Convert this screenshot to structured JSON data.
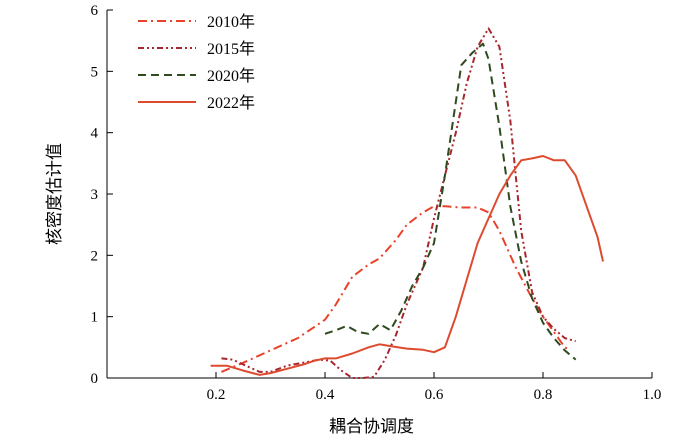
{
  "chart_data": {
    "type": "line",
    "title": "",
    "xlabel": "耦合协调度",
    "ylabel": "核密度估计值",
    "xlim": [
      0,
      1.0
    ],
    "ylim": [
      0,
      6
    ],
    "xticks": [
      0.2,
      0.4,
      0.6,
      0.8,
      1.0
    ],
    "xtick_labels": [
      "0.2",
      "0.4",
      "0.6",
      "0.8",
      "1.0"
    ],
    "yticks": [
      0,
      1,
      2,
      3,
      4,
      5,
      6
    ],
    "ytick_labels": [
      "0",
      "1",
      "2",
      "3",
      "4",
      "5",
      "6"
    ],
    "grid": false,
    "legend_position": "top-left",
    "series": [
      {
        "name": "2010年",
        "style": "dashdot",
        "color": "#e8422a",
        "points": [
          [
            0.21,
            0.1
          ],
          [
            0.25,
            0.25
          ],
          [
            0.3,
            0.45
          ],
          [
            0.35,
            0.65
          ],
          [
            0.4,
            0.95
          ],
          [
            0.42,
            1.2
          ],
          [
            0.45,
            1.65
          ],
          [
            0.48,
            1.85
          ],
          [
            0.5,
            1.95
          ],
          [
            0.53,
            2.25
          ],
          [
            0.55,
            2.5
          ],
          [
            0.58,
            2.7
          ],
          [
            0.6,
            2.8
          ],
          [
            0.62,
            2.8
          ],
          [
            0.65,
            2.78
          ],
          [
            0.68,
            2.78
          ],
          [
            0.7,
            2.7
          ],
          [
            0.72,
            2.4
          ],
          [
            0.75,
            1.8
          ],
          [
            0.78,
            1.3
          ],
          [
            0.8,
            1.0
          ],
          [
            0.82,
            0.75
          ],
          [
            0.84,
            0.5
          ],
          [
            0.85,
            0.45
          ]
        ]
      },
      {
        "name": "2015年",
        "style": "dashdotdot",
        "color": "#a8262e",
        "points": [
          [
            0.21,
            0.32
          ],
          [
            0.23,
            0.3
          ],
          [
            0.25,
            0.22
          ],
          [
            0.28,
            0.1
          ],
          [
            0.3,
            0.1
          ],
          [
            0.33,
            0.2
          ],
          [
            0.36,
            0.25
          ],
          [
            0.39,
            0.3
          ],
          [
            0.41,
            0.28
          ],
          [
            0.43,
            0.12
          ],
          [
            0.45,
            0.0
          ],
          [
            0.47,
            0.0
          ],
          [
            0.49,
            0.02
          ],
          [
            0.51,
            0.3
          ],
          [
            0.53,
            0.7
          ],
          [
            0.55,
            1.2
          ],
          [
            0.58,
            1.8
          ],
          [
            0.6,
            2.6
          ],
          [
            0.62,
            3.3
          ],
          [
            0.64,
            4.0
          ],
          [
            0.66,
            4.8
          ],
          [
            0.68,
            5.4
          ],
          [
            0.7,
            5.7
          ],
          [
            0.72,
            5.4
          ],
          [
            0.74,
            4.2
          ],
          [
            0.76,
            2.4
          ],
          [
            0.78,
            1.4
          ],
          [
            0.8,
            1.0
          ],
          [
            0.82,
            0.8
          ],
          [
            0.84,
            0.65
          ],
          [
            0.86,
            0.6
          ]
        ]
      },
      {
        "name": "2020年",
        "style": "dashed",
        "color": "#2e4a1e",
        "points": [
          [
            0.4,
            0.72
          ],
          [
            0.42,
            0.78
          ],
          [
            0.44,
            0.85
          ],
          [
            0.46,
            0.75
          ],
          [
            0.48,
            0.72
          ],
          [
            0.5,
            0.88
          ],
          [
            0.52,
            0.78
          ],
          [
            0.54,
            1.1
          ],
          [
            0.56,
            1.5
          ],
          [
            0.58,
            1.8
          ],
          [
            0.6,
            2.2
          ],
          [
            0.62,
            3.3
          ],
          [
            0.64,
            4.5
          ],
          [
            0.65,
            5.1
          ],
          [
            0.67,
            5.3
          ],
          [
            0.69,
            5.45
          ],
          [
            0.7,
            5.2
          ],
          [
            0.72,
            4.1
          ],
          [
            0.74,
            2.8
          ],
          [
            0.76,
            1.9
          ],
          [
            0.78,
            1.3
          ],
          [
            0.8,
            0.9
          ],
          [
            0.82,
            0.65
          ],
          [
            0.84,
            0.45
          ],
          [
            0.86,
            0.3
          ]
        ]
      },
      {
        "name": "2022年",
        "style": "solid",
        "color": "#dd4b2f",
        "points": [
          [
            0.19,
            0.2
          ],
          [
            0.22,
            0.2
          ],
          [
            0.25,
            0.12
          ],
          [
            0.28,
            0.05
          ],
          [
            0.3,
            0.08
          ],
          [
            0.33,
            0.15
          ],
          [
            0.36,
            0.22
          ],
          [
            0.38,
            0.28
          ],
          [
            0.4,
            0.32
          ],
          [
            0.42,
            0.32
          ],
          [
            0.45,
            0.4
          ],
          [
            0.48,
            0.5
          ],
          [
            0.5,
            0.55
          ],
          [
            0.52,
            0.52
          ],
          [
            0.55,
            0.48
          ],
          [
            0.58,
            0.46
          ],
          [
            0.6,
            0.42
          ],
          [
            0.62,
            0.5
          ],
          [
            0.64,
            1.0
          ],
          [
            0.66,
            1.6
          ],
          [
            0.68,
            2.2
          ],
          [
            0.7,
            2.6
          ],
          [
            0.72,
            3.0
          ],
          [
            0.74,
            3.3
          ],
          [
            0.76,
            3.55
          ],
          [
            0.78,
            3.58
          ],
          [
            0.8,
            3.62
          ],
          [
            0.82,
            3.55
          ],
          [
            0.84,
            3.55
          ],
          [
            0.86,
            3.3
          ],
          [
            0.88,
            2.8
          ],
          [
            0.9,
            2.3
          ],
          [
            0.91,
            1.9
          ]
        ]
      }
    ]
  }
}
